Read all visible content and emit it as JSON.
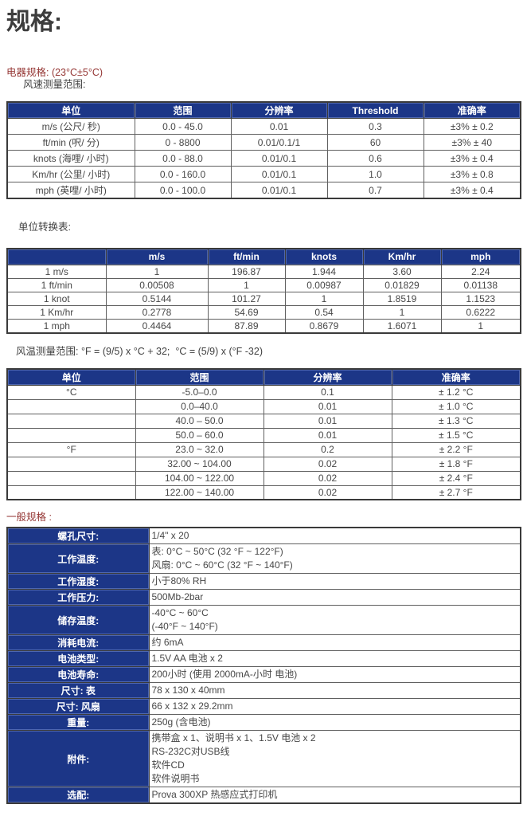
{
  "page": {
    "title": "规格:",
    "colors": {
      "navy": "#1c3687",
      "navy_light": "#4e66ae",
      "red": "#953735",
      "border_dark": "#3a3a3a",
      "border_mid": "#606060",
      "text": "#474747"
    }
  },
  "electrical": {
    "heading": "电器规格: (23°C±5°C)",
    "subheading": "风速测量范围:"
  },
  "speed_table": {
    "headers": [
      "单位",
      "范围",
      "分辨率",
      "Threshold",
      "准确率"
    ],
    "rows": [
      [
        "m/s (公尺/ 秒)",
        "0.0 - 45.0",
        "0.01",
        "0.3",
        "±3% ± 0.2"
      ],
      [
        "ft/min (呎/ 分)",
        "0 - 8800",
        "0.01/0.1/1",
        "60",
        "±3% ± 40"
      ],
      [
        "knots (海哩/ 小时)",
        "0.0 - 88.0",
        "0.01/0.1",
        "0.6",
        "±3% ± 0.4"
      ],
      [
        "Km/hr (公里/ 小时)",
        "0.0 - 160.0",
        "0.01/0.1",
        "1.0",
        "±3% ± 0.8"
      ],
      [
        "mph (英哩/ 小时)",
        "0.0 - 100.0",
        "0.01/0.1",
        "0.7",
        "±3% ± 0.4"
      ]
    ]
  },
  "conversion_table": {
    "heading": "单位转换表:",
    "headers": [
      "",
      "m/s",
      "ft/min",
      "knots",
      "Km/hr",
      "mph"
    ],
    "rows": [
      [
        "1 m/s",
        "1",
        "196.87",
        "1.944",
        "3.60",
        "2.24"
      ],
      [
        "1 ft/min",
        "0.00508",
        "1",
        "0.00987",
        "0.01829",
        "0.01138"
      ],
      [
        "1 knot",
        "0.5144",
        "101.27",
        "1",
        "1.8519",
        "1.1523"
      ],
      [
        "1 Km/hr",
        "0.2778",
        "54.69",
        "0.54",
        "1",
        "0.6222"
      ],
      [
        "1 mph",
        "0.4464",
        "87.89",
        "0.8679",
        "1.6071",
        "1"
      ]
    ]
  },
  "temperature_table": {
    "heading": "风温测量范围: °F = (9/5) x °C + 32;  °C = (5/9) x (°F -32)",
    "headers": [
      "单位",
      "范围",
      "分辨率",
      "准确率"
    ],
    "rows": [
      [
        "°C",
        "-5.0–0.0",
        "0.1",
        "± 1.2 °C"
      ],
      [
        "",
        "0.0–40.0",
        "0.01",
        "± 1.0 °C"
      ],
      [
        "",
        "40.0 – 50.0",
        "0.01",
        "± 1.3 °C"
      ],
      [
        "",
        "50.0 – 60.0",
        "0.01",
        "± 1.5 °C"
      ],
      [
        "°F",
        "23.0 ~ 32.0",
        "0.2",
        "± 2.2 °F"
      ],
      [
        "",
        "32.00 ~ 104.00",
        "0.02",
        "± 1.8 °F"
      ],
      [
        "",
        "104.00 ~ 122.00",
        "0.02",
        "± 2.4 °F"
      ],
      [
        "",
        "122.00 ~ 140.00",
        "0.02",
        "± 2.7 °F"
      ]
    ]
  },
  "general_table": {
    "heading": "一般规格 :",
    "rows": [
      {
        "label": "螺孔尺寸:",
        "lines": [
          "1/4\" x 20"
        ]
      },
      {
        "label": "工作温度:",
        "lines": [
          "表: 0°C ~ 50°C (32 °F ~ 122°F)",
          "风扇: 0°C ~ 60°C (32 °F ~ 140°F)"
        ]
      },
      {
        "label": "工作湿度:",
        "lines": [
          "小于80% RH"
        ]
      },
      {
        "label": "工作压力:",
        "lines": [
          "500Mb-2bar"
        ]
      },
      {
        "label": "储存温度:",
        "lines": [
          "-40°C ~ 60°C",
          "(-40°F ~ 140°F)"
        ]
      },
      {
        "label": "消耗电流:",
        "lines": [
          "约 6mA"
        ]
      },
      {
        "label": "电池类型:",
        "lines": [
          "1.5V AA 电池 x 2"
        ]
      },
      {
        "label": "电池寿命:",
        "lines": [
          "200小时 (使用 2000mA-小时 电池)"
        ]
      },
      {
        "label": "尺寸: 表",
        "lines": [
          "78 x 130 x 40mm"
        ]
      },
      {
        "label": "尺寸: 风扇",
        "lines": [
          "66 x 132 x 29.2mm"
        ]
      },
      {
        "label": "重量:",
        "lines": [
          "250g (含电池)"
        ]
      },
      {
        "label": "附件:",
        "lines": [
          "携带盒 x 1、说明书 x 1、1.5V 电池 x 2",
          "RS-232C对USB线",
          "软件CD",
          "软件说明书"
        ]
      },
      {
        "label": "选配:",
        "lines": [
          "Prova 300XP 热感应式打印机"
        ]
      }
    ]
  }
}
